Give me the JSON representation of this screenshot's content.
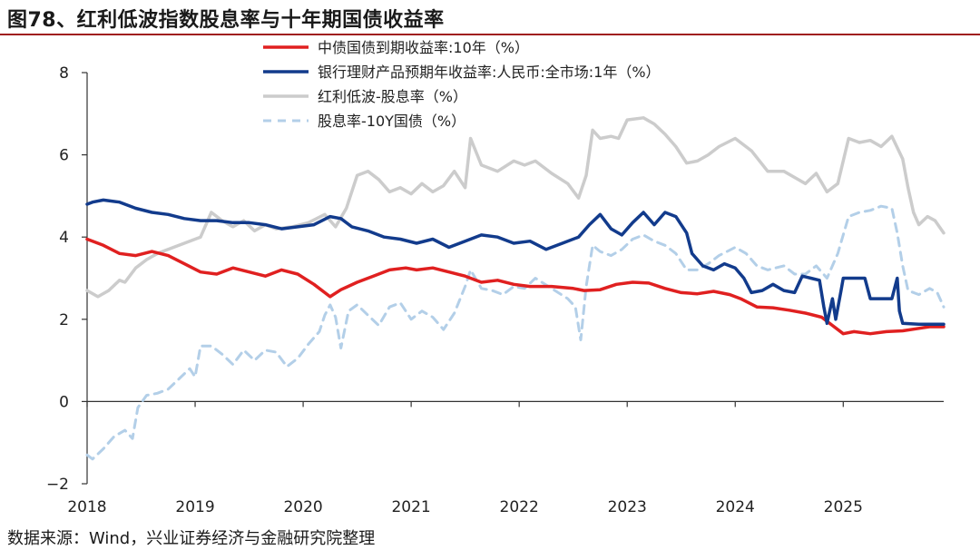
{
  "figure": {
    "title": "图78、红利低波指数股息率与十年期国债收益率",
    "source": "数据来源：Wind，兴业证券经济与金融研究院整理"
  },
  "chart_data": {
    "type": "line",
    "title": "图78、红利低波指数股息率与十年期国债收益率",
    "xlabel": "",
    "ylabel": "",
    "xlim": [
      2018.0,
      2025.93
    ],
    "ylim": [
      -2,
      8
    ],
    "yticks": [
      -2,
      0,
      2,
      4,
      6,
      8
    ],
    "xticks": [
      2018,
      2019,
      2020,
      2021,
      2022,
      2023,
      2024,
      2025
    ],
    "legend_position": "top-center",
    "series": [
      {
        "name": "中债国债到期收益率:10年（%）",
        "color": "#e02020",
        "dash": "solid",
        "width": 3.5,
        "points": [
          [
            2018.0,
            3.95
          ],
          [
            2018.15,
            3.8
          ],
          [
            2018.3,
            3.6
          ],
          [
            2018.45,
            3.55
          ],
          [
            2018.6,
            3.65
          ],
          [
            2018.75,
            3.55
          ],
          [
            2018.9,
            3.35
          ],
          [
            2019.05,
            3.15
          ],
          [
            2019.2,
            3.1
          ],
          [
            2019.35,
            3.25
          ],
          [
            2019.5,
            3.15
          ],
          [
            2019.65,
            3.05
          ],
          [
            2019.8,
            3.2
          ],
          [
            2019.95,
            3.1
          ],
          [
            2020.1,
            2.85
          ],
          [
            2020.2,
            2.65
          ],
          [
            2020.25,
            2.55
          ],
          [
            2020.35,
            2.72
          ],
          [
            2020.5,
            2.9
          ],
          [
            2020.65,
            3.05
          ],
          [
            2020.8,
            3.2
          ],
          [
            2020.95,
            3.25
          ],
          [
            2021.05,
            3.2
          ],
          [
            2021.2,
            3.25
          ],
          [
            2021.35,
            3.15
          ],
          [
            2021.5,
            3.05
          ],
          [
            2021.65,
            2.9
          ],
          [
            2021.8,
            2.95
          ],
          [
            2021.95,
            2.85
          ],
          [
            2022.1,
            2.8
          ],
          [
            2022.3,
            2.8
          ],
          [
            2022.5,
            2.75
          ],
          [
            2022.6,
            2.7
          ],
          [
            2022.75,
            2.72
          ],
          [
            2022.9,
            2.85
          ],
          [
            2023.05,
            2.9
          ],
          [
            2023.2,
            2.88
          ],
          [
            2023.35,
            2.75
          ],
          [
            2023.5,
            2.65
          ],
          [
            2023.65,
            2.62
          ],
          [
            2023.8,
            2.68
          ],
          [
            2023.95,
            2.6
          ],
          [
            2024.05,
            2.5
          ],
          [
            2024.2,
            2.3
          ],
          [
            2024.35,
            2.28
          ],
          [
            2024.5,
            2.22
          ],
          [
            2024.65,
            2.15
          ],
          [
            2024.8,
            2.05
          ],
          [
            2024.9,
            1.85
          ],
          [
            2025.0,
            1.65
          ],
          [
            2025.1,
            1.7
          ],
          [
            2025.25,
            1.65
          ],
          [
            2025.4,
            1.7
          ],
          [
            2025.55,
            1.72
          ],
          [
            2025.7,
            1.78
          ],
          [
            2025.8,
            1.82
          ],
          [
            2025.93,
            1.82
          ]
        ]
      },
      {
        "name": "银行理财产品预期年收益率:人民币:全市场:1年（%）",
        "color": "#123b8c",
        "dash": "solid",
        "width": 3.5,
        "points": [
          [
            2018.0,
            4.8
          ],
          [
            2018.05,
            4.85
          ],
          [
            2018.15,
            4.9
          ],
          [
            2018.3,
            4.85
          ],
          [
            2018.45,
            4.7
          ],
          [
            2018.6,
            4.6
          ],
          [
            2018.75,
            4.55
          ],
          [
            2018.9,
            4.45
          ],
          [
            2019.05,
            4.4
          ],
          [
            2019.2,
            4.4
          ],
          [
            2019.35,
            4.35
          ],
          [
            2019.5,
            4.35
          ],
          [
            2019.65,
            4.3
          ],
          [
            2019.8,
            4.2
          ],
          [
            2019.95,
            4.25
          ],
          [
            2020.1,
            4.3
          ],
          [
            2020.25,
            4.5
          ],
          [
            2020.35,
            4.45
          ],
          [
            2020.45,
            4.25
          ],
          [
            2020.6,
            4.15
          ],
          [
            2020.75,
            4.0
          ],
          [
            2020.9,
            3.95
          ],
          [
            2021.05,
            3.85
          ],
          [
            2021.2,
            3.95
          ],
          [
            2021.35,
            3.75
          ],
          [
            2021.5,
            3.9
          ],
          [
            2021.65,
            4.05
          ],
          [
            2021.8,
            4.0
          ],
          [
            2021.95,
            3.85
          ],
          [
            2022.1,
            3.9
          ],
          [
            2022.25,
            3.7
          ],
          [
            2022.4,
            3.85
          ],
          [
            2022.55,
            4.0
          ],
          [
            2022.65,
            4.3
          ],
          [
            2022.75,
            4.55
          ],
          [
            2022.85,
            4.2
          ],
          [
            2022.95,
            4.05
          ],
          [
            2023.05,
            4.35
          ],
          [
            2023.15,
            4.6
          ],
          [
            2023.25,
            4.3
          ],
          [
            2023.35,
            4.6
          ],
          [
            2023.45,
            4.5
          ],
          [
            2023.55,
            4.1
          ],
          [
            2023.6,
            3.6
          ],
          [
            2023.7,
            3.3
          ],
          [
            2023.8,
            3.2
          ],
          [
            2023.9,
            3.35
          ],
          [
            2024.0,
            3.25
          ],
          [
            2024.08,
            3.0
          ],
          [
            2024.15,
            2.65
          ],
          [
            2024.25,
            2.7
          ],
          [
            2024.35,
            2.85
          ],
          [
            2024.45,
            2.7
          ],
          [
            2024.55,
            2.65
          ],
          [
            2024.62,
            3.05
          ],
          [
            2024.7,
            3.0
          ],
          [
            2024.78,
            2.95
          ],
          [
            2024.82,
            2.3
          ],
          [
            2024.85,
            1.9
          ],
          [
            2024.9,
            2.5
          ],
          [
            2024.93,
            2.0
          ],
          [
            2024.98,
            2.7
          ],
          [
            2025.0,
            3.0
          ],
          [
            2025.05,
            3.0
          ],
          [
            2025.2,
            3.0
          ],
          [
            2025.25,
            2.5
          ],
          [
            2025.35,
            2.5
          ],
          [
            2025.45,
            2.5
          ],
          [
            2025.5,
            3.0
          ],
          [
            2025.52,
            2.2
          ],
          [
            2025.55,
            1.9
          ],
          [
            2025.7,
            1.88
          ],
          [
            2025.93,
            1.88
          ]
        ]
      },
      {
        "name": "红利低波-股息率（%）",
        "color": "#cccccc",
        "dash": "solid",
        "width": 3.5,
        "points": [
          [
            2018.0,
            2.7
          ],
          [
            2018.1,
            2.55
          ],
          [
            2018.2,
            2.7
          ],
          [
            2018.3,
            2.95
          ],
          [
            2018.35,
            2.9
          ],
          [
            2018.45,
            3.25
          ],
          [
            2018.55,
            3.45
          ],
          [
            2018.65,
            3.6
          ],
          [
            2018.75,
            3.7
          ],
          [
            2018.85,
            3.8
          ],
          [
            2018.95,
            3.9
          ],
          [
            2019.05,
            4.0
          ],
          [
            2019.15,
            4.6
          ],
          [
            2019.25,
            4.4
          ],
          [
            2019.35,
            4.25
          ],
          [
            2019.45,
            4.4
          ],
          [
            2019.55,
            4.15
          ],
          [
            2019.65,
            4.3
          ],
          [
            2019.75,
            4.2
          ],
          [
            2019.9,
            4.25
          ],
          [
            2020.05,
            4.35
          ],
          [
            2020.2,
            4.55
          ],
          [
            2020.3,
            4.25
          ],
          [
            2020.4,
            4.7
          ],
          [
            2020.5,
            5.5
          ],
          [
            2020.6,
            5.6
          ],
          [
            2020.7,
            5.4
          ],
          [
            2020.8,
            5.1
          ],
          [
            2020.9,
            5.2
          ],
          [
            2021.0,
            5.05
          ],
          [
            2021.1,
            5.3
          ],
          [
            2021.2,
            5.1
          ],
          [
            2021.3,
            5.25
          ],
          [
            2021.4,
            5.6
          ],
          [
            2021.5,
            5.2
          ],
          [
            2021.55,
            6.4
          ],
          [
            2021.65,
            5.75
          ],
          [
            2021.8,
            5.6
          ],
          [
            2021.95,
            5.85
          ],
          [
            2022.05,
            5.75
          ],
          [
            2022.15,
            5.85
          ],
          [
            2022.3,
            5.55
          ],
          [
            2022.45,
            5.3
          ],
          [
            2022.55,
            4.95
          ],
          [
            2022.62,
            5.5
          ],
          [
            2022.68,
            6.6
          ],
          [
            2022.75,
            6.4
          ],
          [
            2022.85,
            6.45
          ],
          [
            2022.92,
            6.4
          ],
          [
            2023.0,
            6.85
          ],
          [
            2023.15,
            6.9
          ],
          [
            2023.25,
            6.75
          ],
          [
            2023.35,
            6.5
          ],
          [
            2023.45,
            6.2
          ],
          [
            2023.55,
            5.8
          ],
          [
            2023.65,
            5.85
          ],
          [
            2023.75,
            6.0
          ],
          [
            2023.85,
            6.2
          ],
          [
            2024.0,
            6.4
          ],
          [
            2024.15,
            6.1
          ],
          [
            2024.3,
            5.6
          ],
          [
            2024.45,
            5.6
          ],
          [
            2024.55,
            5.45
          ],
          [
            2024.65,
            5.3
          ],
          [
            2024.75,
            5.55
          ],
          [
            2024.85,
            5.1
          ],
          [
            2024.95,
            5.3
          ],
          [
            2025.05,
            6.4
          ],
          [
            2025.15,
            6.3
          ],
          [
            2025.25,
            6.35
          ],
          [
            2025.35,
            6.2
          ],
          [
            2025.45,
            6.45
          ],
          [
            2025.55,
            5.9
          ],
          [
            2025.6,
            5.2
          ],
          [
            2025.65,
            4.6
          ],
          [
            2025.7,
            4.3
          ],
          [
            2025.78,
            4.5
          ],
          [
            2025.85,
            4.4
          ],
          [
            2025.93,
            4.1
          ]
        ]
      },
      {
        "name": "股息率-10Y国债（%）",
        "color": "#b3cfe8",
        "dash": "dashed",
        "width": 3,
        "points": [
          [
            2018.0,
            -1.3
          ],
          [
            2018.05,
            -1.4
          ],
          [
            2018.15,
            -1.15
          ],
          [
            2018.25,
            -0.85
          ],
          [
            2018.35,
            -0.7
          ],
          [
            2018.42,
            -0.9
          ],
          [
            2018.47,
            -0.15
          ],
          [
            2018.55,
            0.15
          ],
          [
            2018.65,
            0.2
          ],
          [
            2018.75,
            0.3
          ],
          [
            2018.85,
            0.55
          ],
          [
            2018.95,
            0.8
          ],
          [
            2019.0,
            0.6
          ],
          [
            2019.05,
            1.35
          ],
          [
            2019.15,
            1.35
          ],
          [
            2019.25,
            1.15
          ],
          [
            2019.35,
            0.9
          ],
          [
            2019.45,
            1.25
          ],
          [
            2019.55,
            1.0
          ],
          [
            2019.65,
            1.25
          ],
          [
            2019.75,
            1.2
          ],
          [
            2019.85,
            0.85
          ],
          [
            2019.95,
            1.05
          ],
          [
            2020.05,
            1.4
          ],
          [
            2020.15,
            1.7
          ],
          [
            2020.2,
            2.1
          ],
          [
            2020.25,
            2.35
          ],
          [
            2020.3,
            2.05
          ],
          [
            2020.35,
            1.3
          ],
          [
            2020.42,
            2.2
          ],
          [
            2020.5,
            2.35
          ],
          [
            2020.6,
            2.1
          ],
          [
            2020.7,
            1.85
          ],
          [
            2020.8,
            2.3
          ],
          [
            2020.9,
            2.4
          ],
          [
            2021.0,
            2.0
          ],
          [
            2021.1,
            2.2
          ],
          [
            2021.2,
            2.05
          ],
          [
            2021.3,
            1.75
          ],
          [
            2021.4,
            2.15
          ],
          [
            2021.5,
            2.8
          ],
          [
            2021.55,
            3.2
          ],
          [
            2021.65,
            2.75
          ],
          [
            2021.75,
            2.7
          ],
          [
            2021.85,
            2.6
          ],
          [
            2021.95,
            2.8
          ],
          [
            2022.05,
            2.75
          ],
          [
            2022.15,
            3.0
          ],
          [
            2022.3,
            2.75
          ],
          [
            2022.45,
            2.5
          ],
          [
            2022.52,
            2.3
          ],
          [
            2022.57,
            1.5
          ],
          [
            2022.62,
            2.8
          ],
          [
            2022.68,
            3.8
          ],
          [
            2022.75,
            3.65
          ],
          [
            2022.85,
            3.55
          ],
          [
            2022.95,
            3.7
          ],
          [
            2023.05,
            3.95
          ],
          [
            2023.15,
            4.05
          ],
          [
            2023.25,
            3.9
          ],
          [
            2023.35,
            3.8
          ],
          [
            2023.45,
            3.6
          ],
          [
            2023.55,
            3.2
          ],
          [
            2023.65,
            3.2
          ],
          [
            2023.75,
            3.35
          ],
          [
            2023.85,
            3.55
          ],
          [
            2024.0,
            3.75
          ],
          [
            2024.1,
            3.6
          ],
          [
            2024.2,
            3.3
          ],
          [
            2024.3,
            3.2
          ],
          [
            2024.45,
            3.3
          ],
          [
            2024.55,
            3.1
          ],
          [
            2024.65,
            3.1
          ],
          [
            2024.75,
            3.3
          ],
          [
            2024.85,
            3.0
          ],
          [
            2024.95,
            3.6
          ],
          [
            2025.05,
            4.5
          ],
          [
            2025.15,
            4.6
          ],
          [
            2025.25,
            4.65
          ],
          [
            2025.35,
            4.75
          ],
          [
            2025.45,
            4.7
          ],
          [
            2025.5,
            4.1
          ],
          [
            2025.55,
            3.3
          ],
          [
            2025.6,
            2.7
          ],
          [
            2025.7,
            2.6
          ],
          [
            2025.8,
            2.75
          ],
          [
            2025.87,
            2.65
          ],
          [
            2025.93,
            2.3
          ]
        ]
      }
    ]
  }
}
